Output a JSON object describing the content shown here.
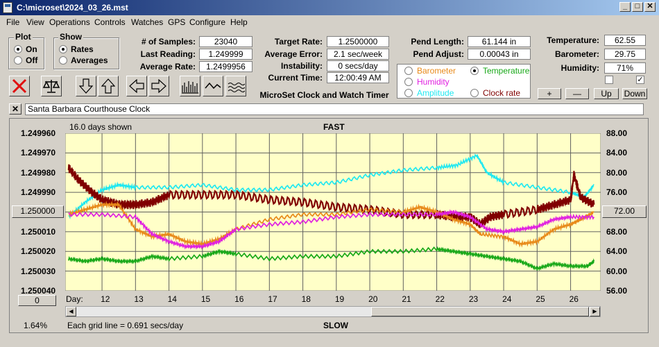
{
  "window": {
    "title": "C:\\microset\\2024_03_26.mst",
    "min": "_",
    "max": "□",
    "close": "✕"
  },
  "menu": [
    "File",
    "View",
    "Operations",
    "Controls",
    "Watches",
    "GPS",
    "Configure",
    "Help"
  ],
  "plot_group": {
    "title": "Plot",
    "options": [
      "On",
      "Off"
    ],
    "selected": 0
  },
  "show_group": {
    "title": "Show",
    "options": [
      "Rates",
      "Averages"
    ],
    "selected": 0
  },
  "stats": {
    "samples_label": "# of Samples:",
    "samples": "23040",
    "last_reading_label": "Last Reading:",
    "last_reading": "1.249999",
    "average_rate_label": "Average Rate:",
    "average_rate": "1.2499956",
    "target_rate_label": "Target Rate:",
    "target_rate": "1.2500000",
    "average_error_label": "Average Error:",
    "average_error": "2.1 sec/week",
    "instability_label": "Instability:",
    "instability": "0 secs/day",
    "current_time_label": "Current Time:",
    "current_time": "12:00:49 AM",
    "app_name": "MicroSet Clock and Watch Timer",
    "pend_length_label": "Pend Length:",
    "pend_length": "61.144 in",
    "pend_adjust_label": "Pend Adjust:",
    "pend_adjust": "0.00043 in",
    "temperature_label": "Temperature:",
    "temperature": "62.55",
    "barometer_label": "Barometer:",
    "barometer": "29.75",
    "humidity_label": "Humidity:",
    "humidity": "71%"
  },
  "legend": {
    "items": [
      {
        "label": "Barometer",
        "color": "#e88a1a",
        "selected": false
      },
      {
        "label": "Temperature",
        "color": "#18a818",
        "selected": true
      },
      {
        "label": "Humidity",
        "color": "#e020e0",
        "selected": false
      },
      {
        "label": "Amplitude",
        "color": "#20e8f0",
        "selected": false
      },
      {
        "label": "Clock rate",
        "color": "#800000",
        "selected": false
      }
    ]
  },
  "small_buttons": {
    "plus": "+",
    "minus": "—",
    "up": "Up",
    "down": "Down"
  },
  "checkboxes": [
    {
      "checked": false
    },
    {
      "checked": true
    }
  ],
  "clock_name": "Santa Barbara Courthouse Clock",
  "clear_name": "✕",
  "plot": {
    "days_shown": "16.0 days shown",
    "top_label": "FAST",
    "bottom_label": "SLOW",
    "grid_note": "Each grid line = 0.691 secs/day",
    "day_prefix": "Day:",
    "zoom": "1.64%",
    "left_button": "1.250000",
    "right_button": "72.00",
    "bottom_left_button": "0"
  },
  "chart_data": {
    "type": "line",
    "x_label": "Day:",
    "x_ticks": [
      12,
      13,
      14,
      15,
      16,
      17,
      18,
      19,
      20,
      21,
      22,
      23,
      24,
      25,
      26
    ],
    "xlim": [
      10.9,
      26.9
    ],
    "left_axis": {
      "ticks": [
        "1.249960",
        "1.249970",
        "1.249980",
        "1.249990",
        "1.250000",
        "1.250010",
        "1.250020",
        "1.250030",
        "1.250040"
      ],
      "range": [
        1.24996,
        1.25004
      ],
      "inverted": true
    },
    "right_axis": {
      "ticks": [
        "88.00",
        "84.00",
        "80.00",
        "76.00",
        "72.00",
        "68.00",
        "64.00",
        "60.00",
        "56.00"
      ],
      "range": [
        56,
        88
      ]
    },
    "grid": true,
    "series": [
      {
        "name": "Amplitude",
        "color": "#20e8f0",
        "x": [
          11,
          11.5,
          12,
          12.5,
          13,
          14,
          15,
          16,
          17,
          18,
          19,
          20,
          21,
          22,
          22.6,
          23.2,
          23.5,
          24,
          25,
          26,
          26.4,
          26.7
        ],
        "y": [
          71,
          74,
          76.5,
          77.5,
          77,
          77,
          77.5,
          76.5,
          76.5,
          77.5,
          78,
          79.5,
          80.5,
          81,
          81.5,
          83.5,
          80,
          78,
          77,
          76,
          75,
          77.5
        ]
      },
      {
        "name": "Clock rate",
        "color": "#800000",
        "x": [
          11,
          11.3,
          11.7,
          12,
          12.5,
          13,
          13.5,
          14,
          15,
          16,
          17,
          18,
          19,
          20,
          21,
          22,
          22.5,
          23,
          23.3,
          23.6,
          24,
          25,
          25.5,
          26,
          26.1,
          26.3,
          26.7
        ],
        "y": [
          81,
          78.5,
          76,
          74.5,
          73.5,
          73.5,
          74,
          75.5,
          75.5,
          75.5,
          74.5,
          74,
          73,
          72.5,
          71.5,
          71.5,
          71,
          71,
          69.5,
          71,
          71.5,
          72.5,
          73.5,
          74.5,
          79.5,
          75,
          73.5
        ]
      },
      {
        "name": "Barometer",
        "color": "#e88a1a",
        "x": [
          11,
          11.5,
          12,
          12.5,
          13,
          13.5,
          14,
          14.5,
          15,
          15.5,
          16,
          17,
          18,
          19,
          20,
          21,
          21.5,
          22,
          22.5,
          23,
          23.3,
          24,
          24.5,
          25,
          25.5,
          26,
          26.3,
          26.7
        ],
        "y": [
          71.5,
          72.5,
          73.5,
          73.5,
          68.5,
          67,
          67.5,
          66,
          65.5,
          66.5,
          68.5,
          70.5,
          71.5,
          71.5,
          72.5,
          72,
          73,
          72,
          70.5,
          69.5,
          67.5,
          67,
          65.5,
          66,
          68.5,
          69.5,
          70.5,
          72
        ]
      },
      {
        "name": "Humidity",
        "color": "#e020e0",
        "x": [
          11,
          12,
          13,
          13.5,
          14,
          14.5,
          15,
          15.5,
          16,
          17,
          18,
          19,
          20,
          21,
          22,
          22.5,
          23,
          23.5,
          24,
          24.5,
          25,
          25.5,
          26,
          26.7
        ],
        "y": [
          71.5,
          71.5,
          71,
          67.5,
          66,
          65,
          65,
          66,
          68.5,
          69.5,
          70,
          71,
          71.5,
          71.5,
          71.5,
          72,
          71,
          68.5,
          68,
          68.5,
          69,
          70.5,
          71,
          71
        ]
      },
      {
        "name": "Temperature",
        "color": "#18a818",
        "x": [
          11,
          11.5,
          12,
          12.5,
          13,
          13.5,
          14,
          15,
          15.5,
          16,
          17,
          18,
          19,
          20,
          21,
          22,
          22.5,
          23,
          23.5,
          24,
          24.5,
          25,
          25.5,
          26,
          26.5,
          26.7
        ],
        "y": [
          62.5,
          62,
          62.5,
          62,
          62,
          63,
          62.5,
          63,
          64,
          63.5,
          62.5,
          63,
          63,
          64,
          64,
          64.5,
          64,
          63.5,
          63,
          62.5,
          62,
          60.5,
          61.5,
          61,
          61,
          62
        ]
      }
    ]
  }
}
